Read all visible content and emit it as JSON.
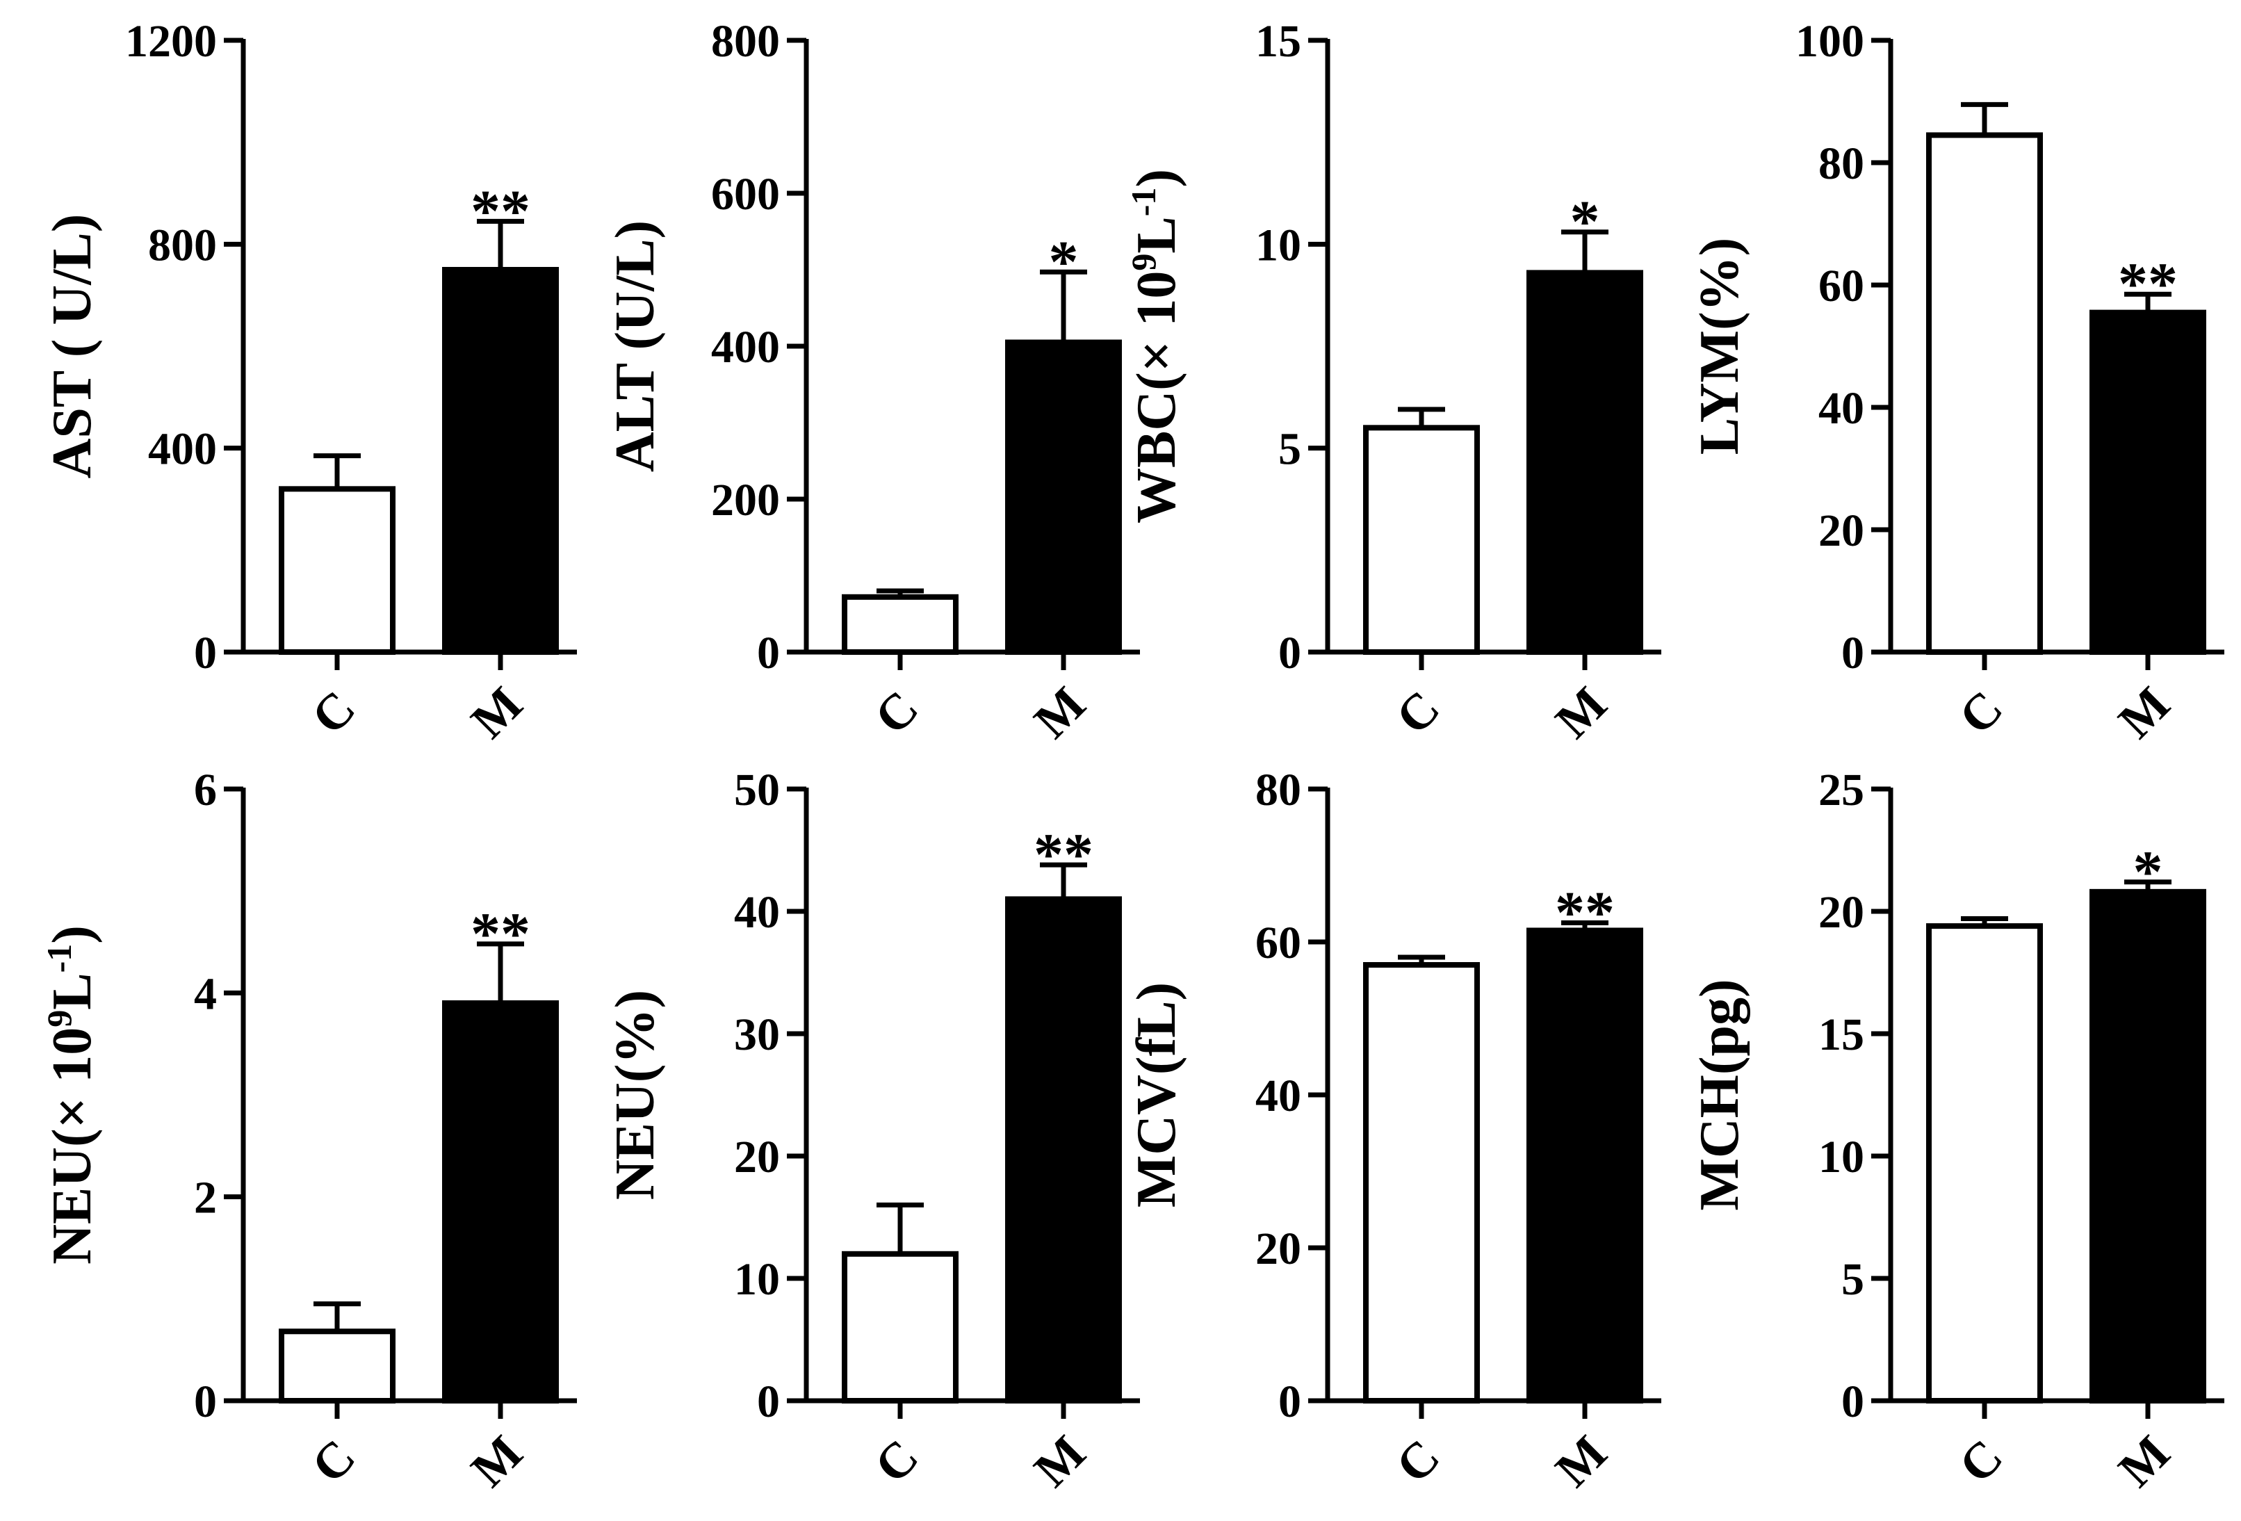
{
  "chart_data": [
    {
      "type": "bar",
      "panel": "AST",
      "ylabel": {
        "main": "AST ( U/L)"
      },
      "categories": [
        "C",
        "M"
      ],
      "values": [
        320,
        750
      ],
      "errors": [
        65,
        95
      ],
      "significance": [
        "",
        "**"
      ],
      "ylim": [
        0,
        1200
      ],
      "yticks": [
        "0",
        "400",
        "800",
        "1200"
      ],
      "fills": [
        "#ffffff",
        "#000000"
      ]
    },
    {
      "type": "bar",
      "panel": "ALT",
      "ylabel": {
        "main": "ALT (U/L)"
      },
      "categories": [
        "C",
        "M"
      ],
      "values": [
        72,
        405
      ],
      "errors": [
        8,
        92
      ],
      "significance": [
        "",
        "*"
      ],
      "ylim": [
        0,
        800
      ],
      "yticks": [
        "0",
        "200",
        "400",
        "600",
        "800"
      ],
      "fills": [
        "#ffffff",
        "#000000"
      ]
    },
    {
      "type": "bar",
      "panel": "WBC",
      "ylabel": {
        "main": "WBC(× 10",
        "sup1": "9",
        "mid": "L",
        "sup2": "-1",
        "end": ")"
      },
      "categories": [
        "C",
        "M"
      ],
      "values": [
        5.5,
        9.3
      ],
      "errors": [
        0.45,
        1.0
      ],
      "significance": [
        "",
        "*"
      ],
      "ylim": [
        0,
        15
      ],
      "yticks": [
        "0",
        "5",
        "10",
        "15"
      ],
      "fills": [
        "#ffffff",
        "#000000"
      ]
    },
    {
      "type": "bar",
      "panel": "LYM",
      "ylabel": {
        "main": "LYM(%)"
      },
      "categories": [
        "C",
        "M"
      ],
      "values": [
        84.5,
        55.5
      ],
      "errors": [
        5,
        3
      ],
      "significance": [
        "",
        "**"
      ],
      "ylim": [
        0,
        100
      ],
      "yticks": [
        "0",
        "20",
        "40",
        "60",
        "80",
        "100"
      ],
      "fills": [
        "#ffffff",
        "#000000"
      ]
    },
    {
      "type": "bar",
      "panel": "NEU-count",
      "ylabel": {
        "main": "NEU(× 10",
        "sup1": "9",
        "mid": "L",
        "sup2": "-1",
        "end": ")"
      },
      "categories": [
        "C",
        "M"
      ],
      "values": [
        0.68,
        3.9
      ],
      "errors": [
        0.27,
        0.58
      ],
      "significance": [
        "",
        "**"
      ],
      "ylim": [
        0,
        6
      ],
      "yticks": [
        "0",
        "2",
        "4",
        "6"
      ],
      "fills": [
        "#ffffff",
        "#000000"
      ]
    },
    {
      "type": "bar",
      "panel": "NEU-percent",
      "ylabel": {
        "main": "NEU(%)"
      },
      "categories": [
        "C",
        "M"
      ],
      "values": [
        12,
        41
      ],
      "errors": [
        4,
        2.8
      ],
      "significance": [
        "",
        "**"
      ],
      "ylim": [
        0,
        50
      ],
      "yticks": [
        "0",
        "10",
        "20",
        "30",
        "40",
        "50"
      ],
      "fills": [
        "#ffffff",
        "#000000"
      ]
    },
    {
      "type": "bar",
      "panel": "MCV",
      "ylabel": {
        "main": "MCV(fL)"
      },
      "categories": [
        "C",
        "M"
      ],
      "values": [
        57,
        61.5
      ],
      "errors": [
        1,
        1
      ],
      "significance": [
        "",
        "**"
      ],
      "ylim": [
        0,
        80
      ],
      "yticks": [
        "0",
        "20",
        "40",
        "60",
        "80"
      ],
      "fills": [
        "#ffffff",
        "#000000"
      ]
    },
    {
      "type": "bar",
      "panel": "MCH",
      "ylabel": {
        "main": "MCH(pg)"
      },
      "categories": [
        "C",
        "M"
      ],
      "values": [
        19.4,
        20.8
      ],
      "errors": [
        0.3,
        0.4
      ],
      "significance": [
        "",
        "*"
      ],
      "ylim": [
        0,
        25
      ],
      "yticks": [
        "0",
        "5",
        "10",
        "15",
        "20",
        "25"
      ],
      "fills": [
        "#ffffff",
        "#000000"
      ]
    }
  ]
}
